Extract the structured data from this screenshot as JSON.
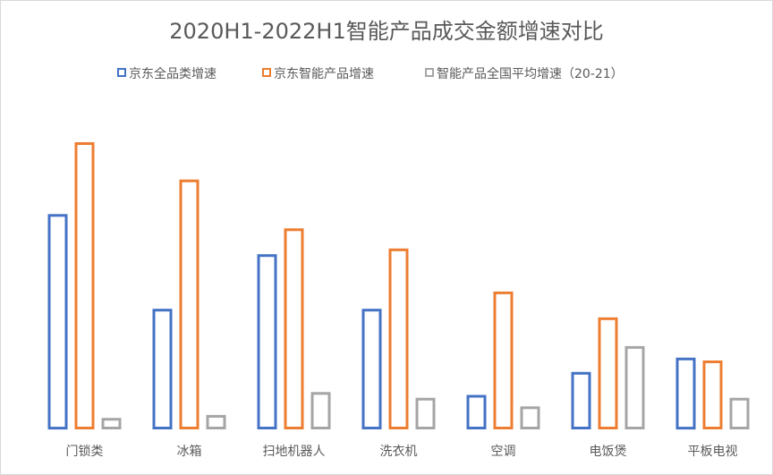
{
  "chart_data": {
    "type": "bar",
    "title": "2020H1-2022H1智能产品成交金额增速对比",
    "xlabel": "",
    "ylabel": "",
    "ylim": [
      0,
      100
    ],
    "grid": false,
    "legend_position": "top",
    "categories": [
      "门锁类",
      "冰箱",
      "扫地机器人",
      "洗衣机",
      "空调",
      "电饭煲",
      "平板电视"
    ],
    "series": [
      {
        "name": "京东全品类增速",
        "color": "#4472C4",
        "values": [
          75,
          42,
          61,
          42,
          12,
          20,
          25
        ]
      },
      {
        "name": "京东智能产品增速",
        "color": "#ED7D31",
        "values": [
          100,
          87,
          70,
          63,
          48,
          39,
          24
        ]
      },
      {
        "name": "智能产品全国平均增速（20-21）",
        "color": "#A5A5A5",
        "values": [
          4,
          5,
          13,
          11,
          8,
          29,
          11
        ]
      }
    ]
  }
}
